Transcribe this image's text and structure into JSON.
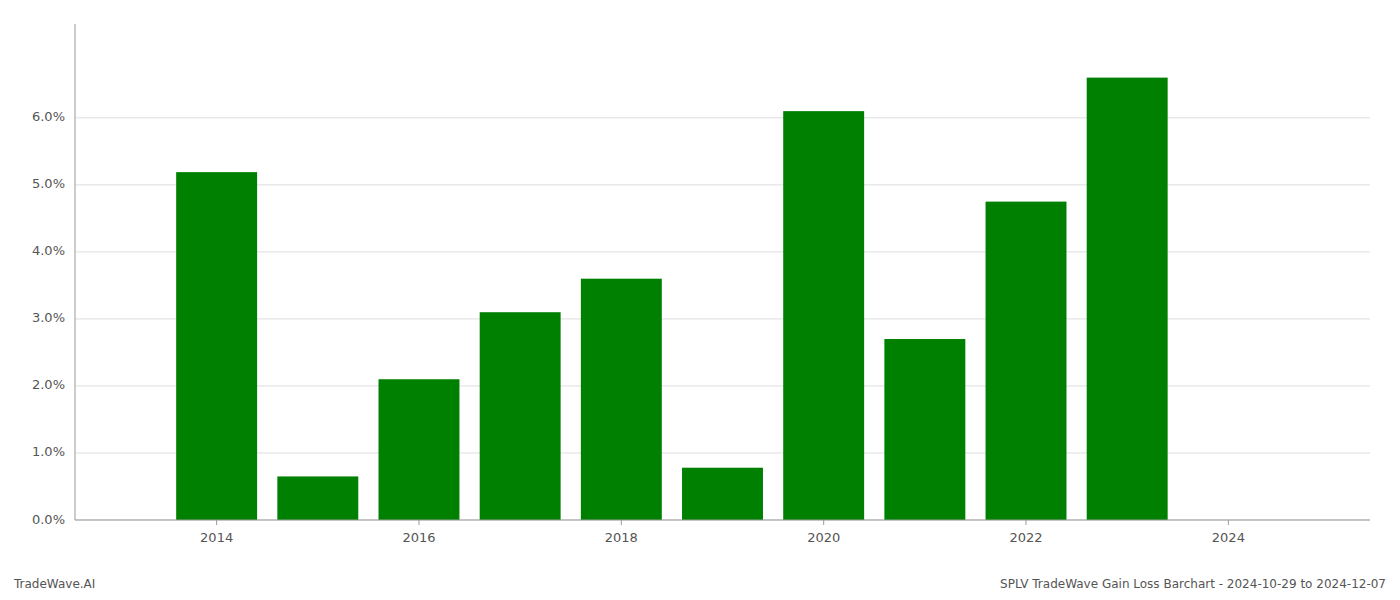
{
  "chart_data": {
    "type": "bar",
    "x": [
      2014,
      2015,
      2016,
      2017,
      2018,
      2019,
      2020,
      2021,
      2022,
      2023
    ],
    "values": [
      0.0519,
      0.0065,
      0.021,
      0.031,
      0.036,
      0.0078,
      0.061,
      0.027,
      0.0475,
      0.066
    ],
    "color": "#008000",
    "xlim": [
      2012.6,
      2025.4
    ],
    "xticks": [
      2014,
      2016,
      2018,
      2020,
      2022,
      2024
    ],
    "ylim": [
      0.0,
      0.074
    ],
    "yticks": [
      {
        "value": 0.0,
        "label": "0.0%"
      },
      {
        "value": 0.01,
        "label": "1.0%"
      },
      {
        "value": 0.02,
        "label": "2.0%"
      },
      {
        "value": 0.03,
        "label": "3.0%"
      },
      {
        "value": 0.04,
        "label": "4.0%"
      },
      {
        "value": 0.05,
        "label": "5.0%"
      },
      {
        "value": 0.06,
        "label": "6.0%"
      }
    ],
    "grid": true,
    "annotations": [
      "TradeWave.AI",
      "SPLV TradeWave Gain Loss Barchart - 2024-10-29 to 2024-12-07"
    ]
  }
}
